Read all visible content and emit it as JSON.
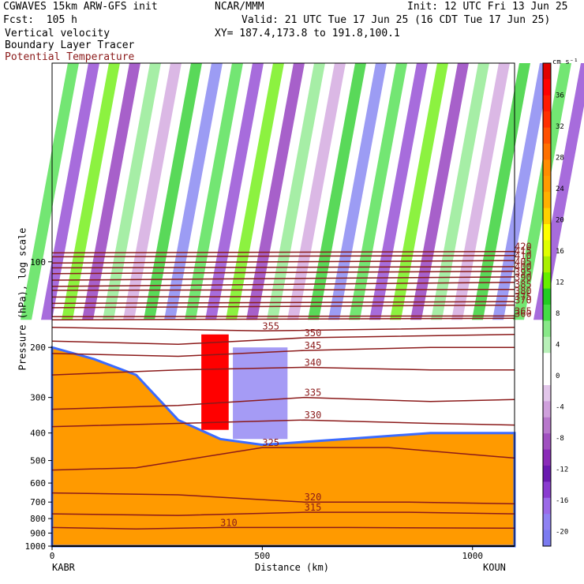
{
  "header": {
    "model_line": "CGWAVES 15km ARW-GFS init",
    "fcst_line": "Fcst:  105 h",
    "field1": "Vertical velocity",
    "field2": "Boundary Layer Tracer",
    "field3": "Potential Temperature",
    "org": "NCAR/MMM",
    "init_line": "Init: 12 UTC Fri 13 Jun 25",
    "valid_line": "Valid: 21 UTC Tue 17 Jun 25 (16 CDT Tue 17 Jun 25)",
    "xy_line": "XY= 187.4,173.8 to 191.8,100.1"
  },
  "colors": {
    "theta_contour": "#8b1a1a",
    "colorbar_units": "cm s⁻¹"
  },
  "chart_data": {
    "type": "heatmap",
    "title": "Vertical velocity",
    "xlabel": "Distance (km)",
    "ylabel": "Pressure (hPa), log scale",
    "x_range": [
      0,
      1100
    ],
    "y_range_hPa": [
      1000,
      20
    ],
    "y_scale": "log",
    "x_ticks": [
      "0",
      "500",
      "1000"
    ],
    "x_tick_values": [
      0,
      500,
      1000
    ],
    "x_endpoints": [
      "KABR",
      "KOUN"
    ],
    "y_ticks": [
      "100",
      "200",
      "300",
      "400",
      "500",
      "600",
      "700",
      "800",
      "900",
      "1000"
    ],
    "y_tick_values": [
      100,
      200,
      300,
      400,
      500,
      600,
      700,
      800,
      900,
      1000
    ],
    "colorbar": {
      "units": "cm s⁻¹",
      "levels": [
        -22,
        -20,
        -18,
        -16,
        -14,
        -12,
        -10,
        -8,
        -6,
        -4,
        -2,
        0,
        2,
        4,
        6,
        8,
        10,
        12,
        14,
        16,
        18,
        20,
        22,
        24,
        26,
        28,
        30,
        32,
        34,
        36,
        38,
        40
      ],
      "tick_labels": [
        "-20",
        "-16",
        "-12",
        "-8",
        "-4",
        "0",
        "4",
        "8",
        "12",
        "16",
        "20",
        "24",
        "28",
        "32",
        "36"
      ],
      "tick_values": [
        -20,
        -16,
        -12,
        -8,
        -4,
        0,
        4,
        8,
        12,
        16,
        20,
        24,
        28,
        32,
        36
      ],
      "colors": [
        "#7b7bf0",
        "#8f82f3",
        "#9b6ae8",
        "#8a3bd0",
        "#6a1ab0",
        "#8a2bb8",
        "#a050c0",
        "#b878cc",
        "#cfa0dc",
        "#e2c6ea",
        "#ffffff",
        "#ffffff",
        "#b8f0b8",
        "#88e888",
        "#44dd44",
        "#22cc22",
        "#66ee00",
        "#aaf000",
        "#dfff00",
        "#ffff00",
        "#ffd000",
        "#ffb000",
        "#ff9a00",
        "#ff8c00",
        "#ff7000",
        "#ff5000",
        "#ff3000",
        "#ff1a00",
        "#ff0000",
        "#e00000"
      ]
    },
    "theta_contours": [
      {
        "label": "310",
        "p": 860,
        "segments": [
          [
            0,
            860
          ],
          [
            200,
            870
          ],
          [
            400,
            860
          ],
          [
            700,
            860
          ],
          [
            1100,
            865
          ]
        ]
      },
      {
        "label": "315",
        "p": 780,
        "segments": [
          [
            0,
            770
          ],
          [
            300,
            780
          ],
          [
            600,
            760
          ],
          [
            850,
            760
          ],
          [
            1100,
            770
          ]
        ]
      },
      {
        "label": "320",
        "p": 690,
        "segments": [
          [
            0,
            650
          ],
          [
            300,
            660
          ],
          [
            600,
            700
          ],
          [
            850,
            700
          ],
          [
            1100,
            710
          ]
        ]
      },
      {
        "label": "325",
        "p": 450,
        "segments": [
          [
            0,
            540
          ],
          [
            200,
            530
          ],
          [
            500,
            450
          ],
          [
            800,
            450
          ],
          [
            1100,
            490
          ]
        ]
      },
      {
        "label": "330",
        "p": 380,
        "segments": [
          [
            0,
            380
          ],
          [
            300,
            370
          ],
          [
            600,
            360
          ],
          [
            900,
            370
          ],
          [
            1100,
            375
          ]
        ]
      },
      {
        "label": "335",
        "p": 320,
        "segments": [
          [
            0,
            330
          ],
          [
            300,
            320
          ],
          [
            600,
            300
          ],
          [
            900,
            310
          ],
          [
            1100,
            305
          ]
        ]
      },
      {
        "label": "340",
        "p": 250,
        "segments": [
          [
            0,
            250
          ],
          [
            300,
            240
          ],
          [
            600,
            235
          ],
          [
            900,
            240
          ],
          [
            1100,
            240
          ]
        ]
      },
      {
        "label": "345",
        "p": 210,
        "segments": [
          [
            0,
            210
          ],
          [
            300,
            215
          ],
          [
            600,
            205
          ],
          [
            900,
            200
          ],
          [
            1100,
            200
          ]
        ]
      },
      {
        "label": "350",
        "p": 195,
        "segments": [
          [
            0,
            190
          ],
          [
            300,
            195
          ],
          [
            600,
            185
          ],
          [
            1100,
            180
          ]
        ]
      },
      {
        "label": "355",
        "p": 175,
        "segments": [
          [
            0,
            170
          ],
          [
            500,
            175
          ],
          [
            1100,
            170
          ]
        ]
      },
      {
        "label": "360",
        "p": 158,
        "segments": [
          [
            0,
            160
          ],
          [
            1100,
            158
          ]
        ]
      },
      {
        "label": "365",
        "p": 155,
        "segments": [
          [
            0,
            156
          ],
          [
            1100,
            155
          ]
        ]
      },
      {
        "label": "370",
        "p": 145,
        "segments": [
          [
            0,
            145
          ],
          [
            1100,
            142
          ]
        ]
      },
      {
        "label": "375",
        "p": 140,
        "segments": [
          [
            0,
            140
          ],
          [
            1100,
            138
          ]
        ]
      },
      {
        "label": "380",
        "p": 135,
        "segments": [
          [
            0,
            133
          ],
          [
            1100,
            132
          ]
        ]
      },
      {
        "label": "385",
        "p": 128,
        "segments": [
          [
            0,
            126
          ],
          [
            1100,
            125
          ]
        ]
      },
      {
        "label": "390",
        "p": 121,
        "segments": [
          [
            0,
            122
          ],
          [
            1100,
            118
          ]
        ]
      },
      {
        "label": "395",
        "p": 117,
        "segments": [
          [
            0,
            116
          ],
          [
            1100,
            113
          ]
        ]
      },
      {
        "label": "400",
        "p": 112,
        "segments": [
          [
            0,
            110
          ],
          [
            1100,
            108
          ]
        ]
      },
      {
        "label": "405",
        "p": 106,
        "segments": [
          [
            0,
            105
          ],
          [
            1100,
            104
          ]
        ]
      },
      {
        "label": "410",
        "p": 101,
        "segments": [
          [
            0,
            101
          ],
          [
            1100,
            99
          ]
        ]
      },
      {
        "label": "415",
        "p": 97,
        "segments": [
          [
            0,
            96
          ],
          [
            1100,
            95
          ]
        ]
      },
      {
        "label": "420",
        "p": 93,
        "segments": [
          [
            0,
            93
          ],
          [
            1100,
            92
          ]
        ]
      }
    ],
    "labeled_contours_shown": [
      "310",
      "315",
      "320",
      "325",
      "330",
      "335",
      "340",
      "345",
      "350",
      "355",
      "360",
      "365",
      "370",
      "375",
      "380",
      "385",
      "390",
      "395",
      "400",
      "405",
      "410",
      "415",
      "420"
    ]
  }
}
